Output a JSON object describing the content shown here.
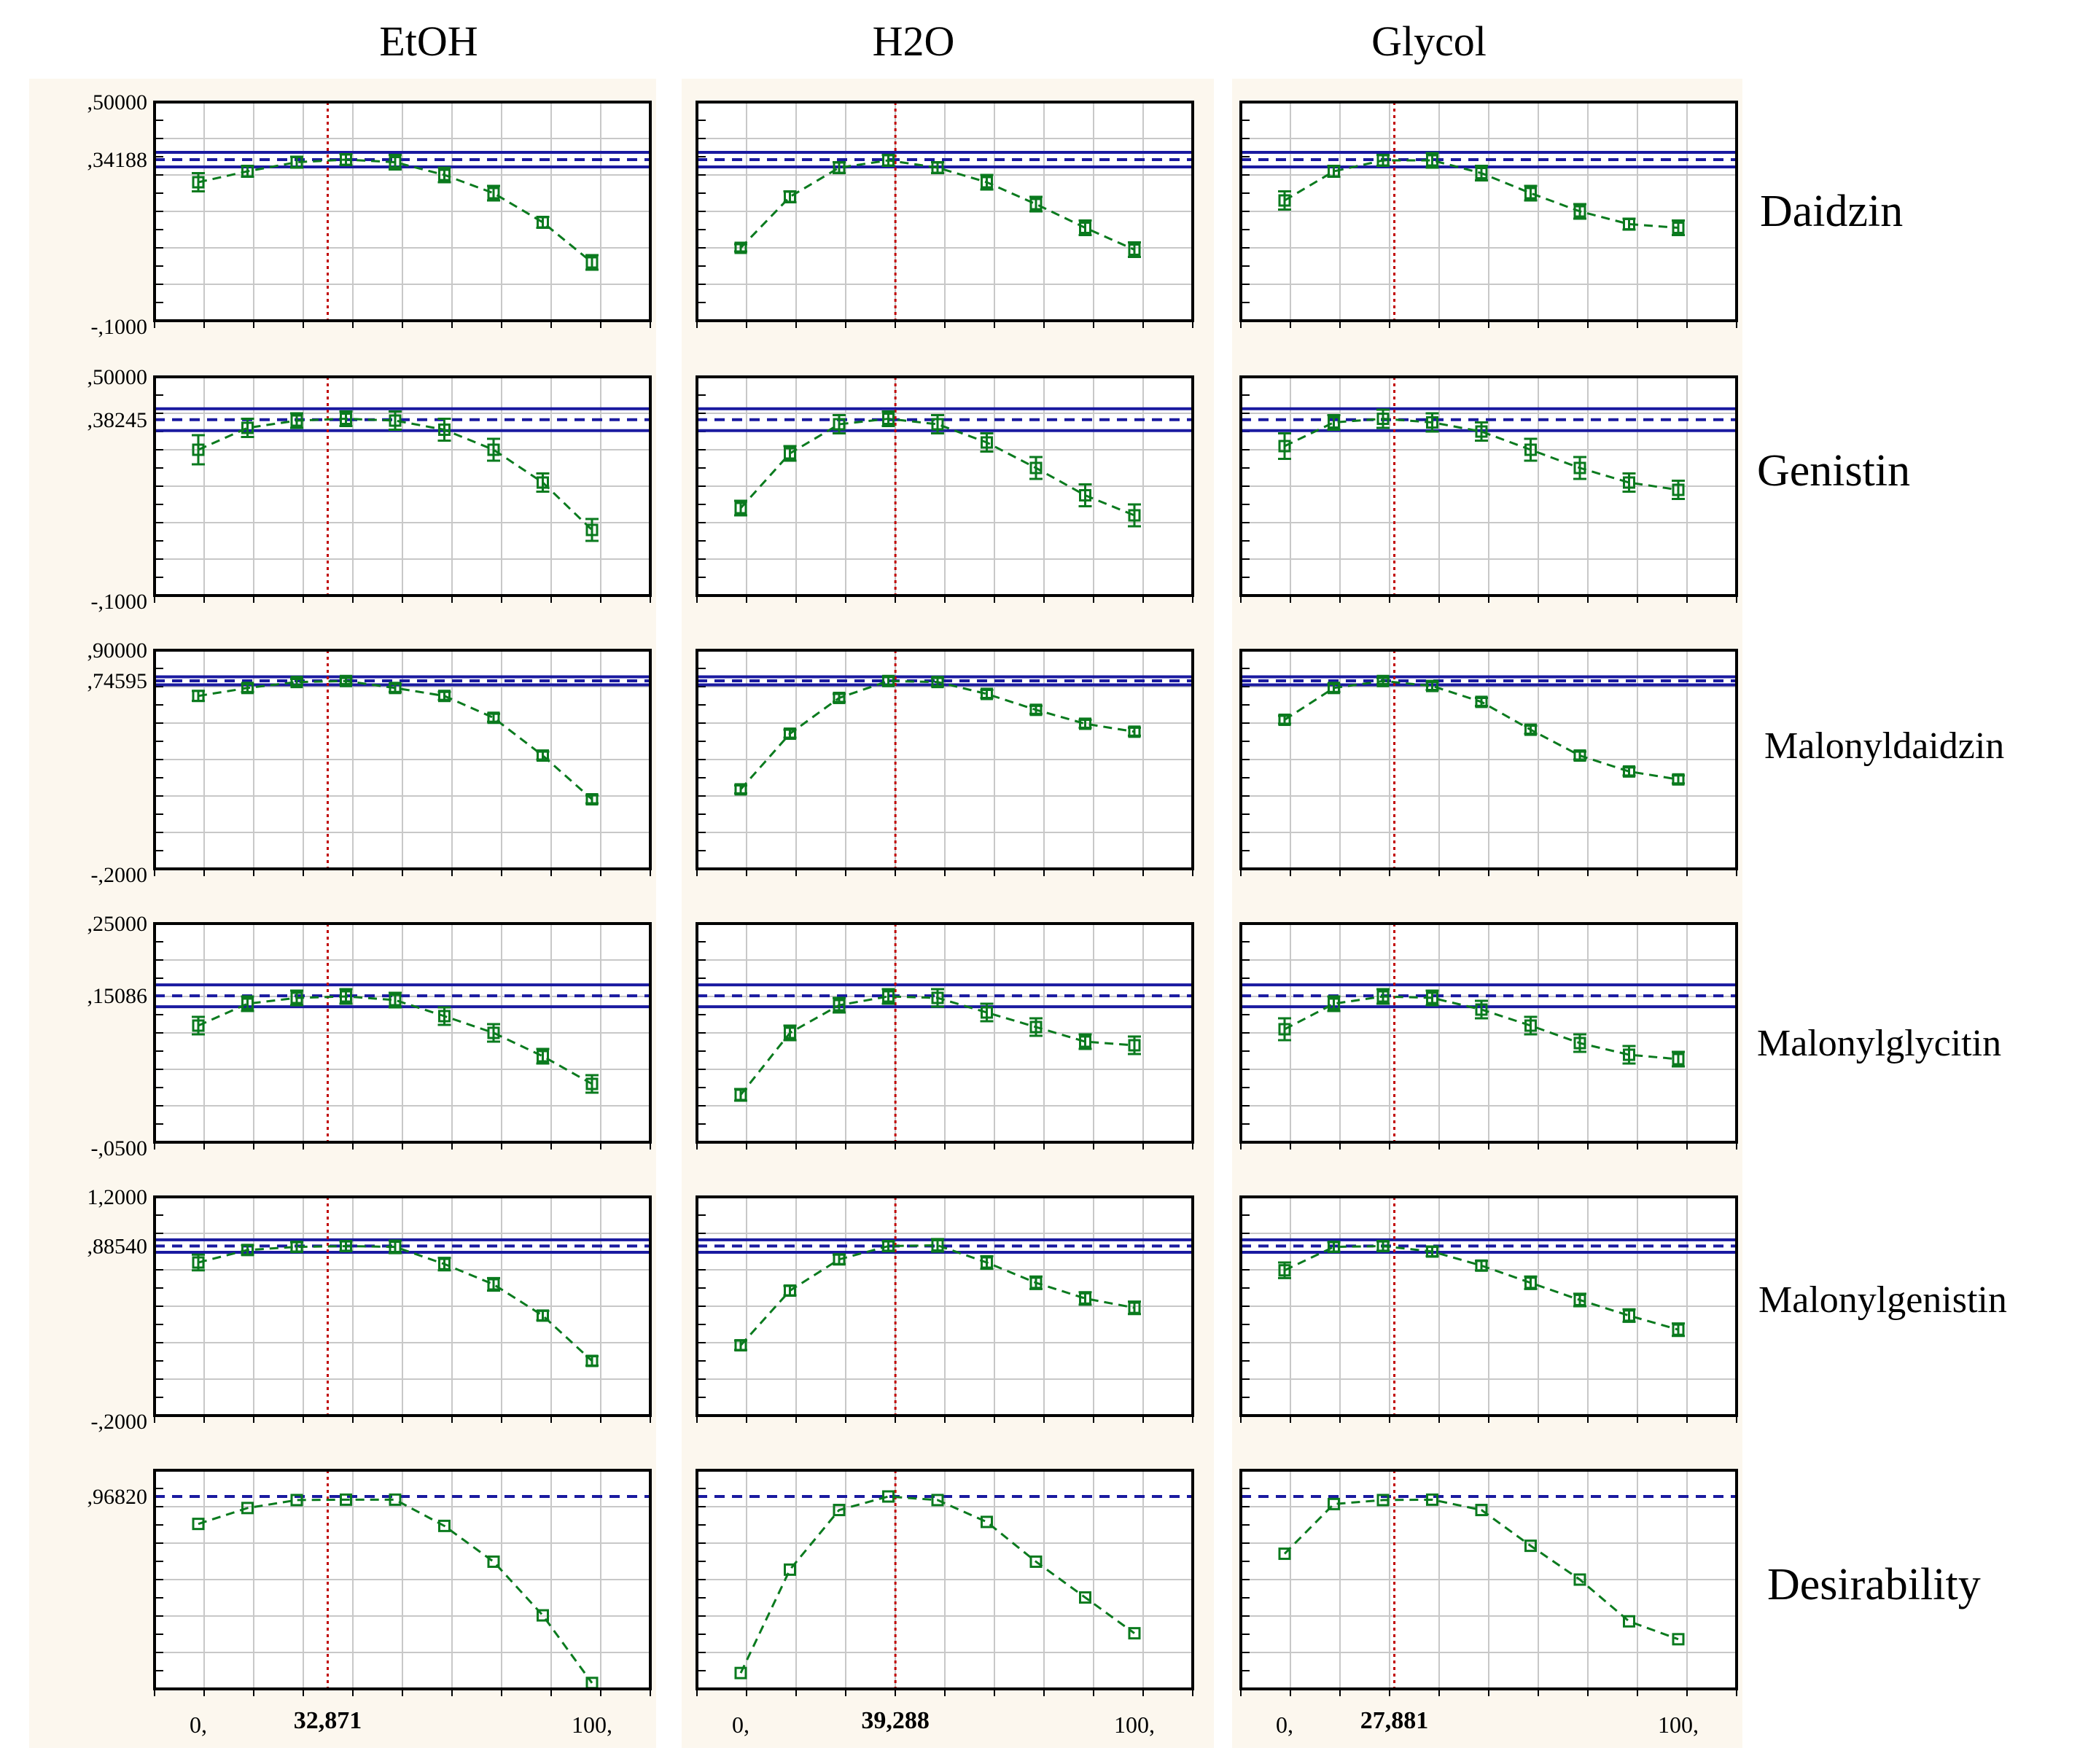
{
  "colors": {
    "panel_bg": "#fcf7ee",
    "plot_bg": "#ffffff",
    "frame": "#000000",
    "grid": "#c8c8c8",
    "series": "#0a7a1e",
    "optimum_band": "#1a1aa0",
    "optimum_line": "#c00000"
  },
  "columns": [
    {
      "title": "EtOH",
      "optimum": 32.871,
      "optimum_label": "32,871",
      "xmin_label": "0,",
      "xmax_label": "100,"
    },
    {
      "title": "H2O",
      "optimum": 39.288,
      "optimum_label": "39,288",
      "xmin_label": "0,",
      "xmax_label": "100,"
    },
    {
      "title": "Glycol",
      "optimum": 27.881,
      "optimum_label": "27,881",
      "xmin_label": "0,",
      "xmax_label": "100,"
    }
  ],
  "rows": [
    {
      "label": "Daidzin",
      "ymin": -0.1,
      "ymax": 0.5,
      "ytick_top": ",50000",
      "ytick_mid": ",34188",
      "ytick_bottom": "-,1000",
      "mid_value": 0.34188,
      "band": 0.02
    },
    {
      "label": "Genistin",
      "ymin": -0.1,
      "ymax": 0.5,
      "ytick_top": ",50000",
      "ytick_mid": ",38245",
      "ytick_bottom": "-,1000",
      "mid_value": 0.38245,
      "band": 0.03
    },
    {
      "label": "Malonyldaidzin",
      "ymin": -0.2,
      "ymax": 0.9,
      "ytick_top": ",90000",
      "ytick_mid": ",74595",
      "ytick_bottom": "-,2000",
      "mid_value": 0.74595,
      "band": 0.02
    },
    {
      "label": "Malonylglycitin",
      "ymin": -0.05,
      "ymax": 0.25,
      "ytick_top": ",25000",
      "ytick_mid": ",15086",
      "ytick_bottom": "-,0500",
      "mid_value": 0.15086,
      "band": 0.015
    },
    {
      "label": "Malonylgenistin",
      "ymin": -0.2,
      "ymax": 1.2,
      "ytick_top": "1,2000",
      "ytick_mid": ",88540",
      "ytick_bottom": "-,2000",
      "mid_value": 0.8854,
      "band": 0.04
    },
    {
      "label": "Desirability",
      "ymin": 0,
      "ymax": 1.1,
      "ytick_top": "",
      "ytick_mid": ",96820",
      "ytick_bottom": "",
      "mid_value": 0.9682,
      "band": 0
    }
  ],
  "chart_data": {
    "type": "line",
    "x": [
      0,
      10,
      20,
      30,
      40,
      50,
      60,
      70,
      80,
      90,
      100
    ],
    "panels": [
      {
        "row": "Daidzin",
        "column": "EtOH",
        "x": [
          0,
          12.5,
          25,
          37.5,
          50,
          62.5,
          75,
          87.5,
          100
        ],
        "y": [
          0.28,
          0.31,
          0.335,
          0.342,
          0.335,
          0.3,
          0.25,
          0.17,
          0.06
        ],
        "err": [
          0.025,
          0.015,
          0.015,
          0.015,
          0.02,
          0.02,
          0.02,
          0.015,
          0.02
        ]
      },
      {
        "row": "Daidzin",
        "column": "H2O",
        "x": [
          0,
          12.5,
          25,
          37.5,
          50,
          62.5,
          75,
          87.5,
          100
        ],
        "y": [
          0.1,
          0.24,
          0.32,
          0.34,
          0.32,
          0.28,
          0.22,
          0.155,
          0.095
        ],
        "err": [
          0.01,
          0.015,
          0.015,
          0.015,
          0.015,
          0.02,
          0.02,
          0.02,
          0.02
        ]
      },
      {
        "row": "Daidzin",
        "column": "Glycol",
        "x": [
          0,
          12.5,
          25,
          37.5,
          50,
          62.5,
          75,
          87.5,
          100
        ],
        "y": [
          0.23,
          0.31,
          0.34,
          0.34,
          0.305,
          0.25,
          0.2,
          0.165,
          0.155
        ],
        "err": [
          0.025,
          0.015,
          0.015,
          0.02,
          0.02,
          0.02,
          0.02,
          0.015,
          0.02
        ]
      },
      {
        "row": "Genistin",
        "column": "EtOH",
        "x": [
          0,
          12.5,
          25,
          37.5,
          50,
          62.5,
          75,
          87.5,
          100
        ],
        "y": [
          0.3,
          0.36,
          0.38,
          0.385,
          0.38,
          0.355,
          0.3,
          0.21,
          0.08
        ],
        "err": [
          0.04,
          0.025,
          0.02,
          0.02,
          0.025,
          0.03,
          0.03,
          0.025,
          0.03
        ]
      },
      {
        "row": "Genistin",
        "column": "H2O",
        "x": [
          0,
          12.5,
          25,
          37.5,
          50,
          62.5,
          75,
          87.5,
          100
        ],
        "y": [
          0.14,
          0.29,
          0.37,
          0.385,
          0.37,
          0.32,
          0.25,
          0.175,
          0.12
        ],
        "err": [
          0.02,
          0.02,
          0.025,
          0.02,
          0.025,
          0.025,
          0.03,
          0.03,
          0.03
        ]
      },
      {
        "row": "Genistin",
        "column": "Glycol",
        "x": [
          0,
          12.5,
          25,
          37.5,
          50,
          62.5,
          75,
          87.5,
          100
        ],
        "y": [
          0.31,
          0.375,
          0.385,
          0.375,
          0.35,
          0.3,
          0.25,
          0.21,
          0.19
        ],
        "err": [
          0.035,
          0.02,
          0.025,
          0.025,
          0.025,
          0.03,
          0.03,
          0.025,
          0.025
        ]
      },
      {
        "row": "Malonyldaidzin",
        "column": "EtOH",
        "x": [
          0,
          12.5,
          25,
          37.5,
          50,
          62.5,
          75,
          87.5,
          100
        ],
        "y": [
          0.67,
          0.71,
          0.74,
          0.745,
          0.71,
          0.67,
          0.56,
          0.37,
          0.15
        ],
        "err": [
          0.025,
          0.02,
          0.015,
          0.015,
          0.02,
          0.02,
          0.02,
          0.02,
          0.02
        ]
      },
      {
        "row": "Malonyldaidzin",
        "column": "H2O",
        "x": [
          0,
          12.5,
          25,
          37.5,
          50,
          62.5,
          75,
          87.5,
          100
        ],
        "y": [
          0.2,
          0.48,
          0.66,
          0.745,
          0.74,
          0.68,
          0.6,
          0.53,
          0.49
        ],
        "err": [
          0.02,
          0.02,
          0.02,
          0.02,
          0.02,
          0.02,
          0.02,
          0.02,
          0.02
        ]
      },
      {
        "row": "Malonyldaidzin",
        "column": "Glycol",
        "x": [
          0,
          12.5,
          25,
          37.5,
          50,
          62.5,
          75,
          87.5,
          100
        ],
        "y": [
          0.55,
          0.71,
          0.745,
          0.72,
          0.64,
          0.5,
          0.37,
          0.29,
          0.25
        ],
        "err": [
          0.02,
          0.02,
          0.015,
          0.02,
          0.02,
          0.02,
          0.02,
          0.02,
          0.02
        ]
      },
      {
        "row": "Malonylglycitin",
        "column": "EtOH",
        "x": [
          0,
          12.5,
          25,
          37.5,
          50,
          62.5,
          75,
          87.5,
          100
        ],
        "y": [
          0.11,
          0.14,
          0.148,
          0.15,
          0.145,
          0.123,
          0.1,
          0.068,
          0.03
        ],
        "err": [
          0.012,
          0.01,
          0.01,
          0.01,
          0.01,
          0.012,
          0.012,
          0.01,
          0.012
        ]
      },
      {
        "row": "Malonylglycitin",
        "column": "H2O",
        "x": [
          0,
          12.5,
          25,
          37.5,
          50,
          62.5,
          75,
          87.5,
          100
        ],
        "y": [
          0.015,
          0.1,
          0.138,
          0.15,
          0.148,
          0.128,
          0.108,
          0.088,
          0.083
        ],
        "err": [
          0.008,
          0.01,
          0.01,
          0.01,
          0.012,
          0.012,
          0.012,
          0.01,
          0.012
        ]
      },
      {
        "row": "Malonylglycitin",
        "column": "Glycol",
        "x": [
          0,
          12.5,
          25,
          37.5,
          50,
          62.5,
          75,
          87.5,
          100
        ],
        "y": [
          0.105,
          0.14,
          0.15,
          0.148,
          0.132,
          0.11,
          0.086,
          0.07,
          0.064
        ],
        "err": [
          0.015,
          0.01,
          0.01,
          0.01,
          0.012,
          0.012,
          0.012,
          0.012,
          0.01
        ]
      },
      {
        "row": "Malonylgenistin",
        "column": "EtOH",
        "x": [
          0,
          12.5,
          25,
          37.5,
          50,
          62.5,
          75,
          87.5,
          100
        ],
        "y": [
          0.78,
          0.86,
          0.88,
          0.885,
          0.88,
          0.77,
          0.64,
          0.44,
          0.15
        ],
        "err": [
          0.05,
          0.03,
          0.03,
          0.03,
          0.04,
          0.04,
          0.04,
          0.03,
          0.03
        ]
      },
      {
        "row": "Malonylgenistin",
        "column": "H2O",
        "x": [
          0,
          12.5,
          25,
          37.5,
          50,
          62.5,
          75,
          87.5,
          100
        ],
        "y": [
          0.25,
          0.6,
          0.8,
          0.885,
          0.89,
          0.78,
          0.65,
          0.55,
          0.49
        ],
        "err": [
          0.03,
          0.03,
          0.03,
          0.03,
          0.04,
          0.04,
          0.04,
          0.04,
          0.04
        ]
      },
      {
        "row": "Malonylgenistin",
        "column": "Glycol",
        "x": [
          0,
          12.5,
          25,
          37.5,
          50,
          62.5,
          75,
          87.5,
          100
        ],
        "y": [
          0.73,
          0.88,
          0.885,
          0.85,
          0.76,
          0.65,
          0.54,
          0.44,
          0.35
        ],
        "err": [
          0.05,
          0.03,
          0.03,
          0.03,
          0.03,
          0.04,
          0.04,
          0.04,
          0.04
        ]
      },
      {
        "row": "Desirability",
        "column": "EtOH",
        "x": [
          0,
          12.5,
          25,
          37.5,
          50,
          62.5,
          75,
          87.5,
          100
        ],
        "y": [
          0.83,
          0.91,
          0.95,
          0.952,
          0.952,
          0.82,
          0.64,
          0.37,
          0.03
        ],
        "err": [
          0,
          0,
          0,
          0,
          0,
          0,
          0,
          0,
          0
        ]
      },
      {
        "row": "Desirability",
        "column": "H2O",
        "x": [
          0,
          12.5,
          25,
          37.5,
          50,
          62.5,
          75,
          87.5,
          100
        ],
        "y": [
          0.08,
          0.6,
          0.9,
          0.968,
          0.95,
          0.84,
          0.64,
          0.46,
          0.28
        ],
        "err": [
          0,
          0,
          0,
          0,
          0,
          0,
          0,
          0,
          0
        ]
      },
      {
        "row": "Desirability",
        "column": "Glycol",
        "x": [
          0,
          12.5,
          25,
          37.5,
          50,
          62.5,
          75,
          87.5,
          100
        ],
        "y": [
          0.68,
          0.93,
          0.95,
          0.952,
          0.9,
          0.72,
          0.55,
          0.34,
          0.25
        ],
        "err": [
          0,
          0,
          0,
          0,
          0,
          0,
          0,
          0,
          0
        ]
      }
    ]
  }
}
